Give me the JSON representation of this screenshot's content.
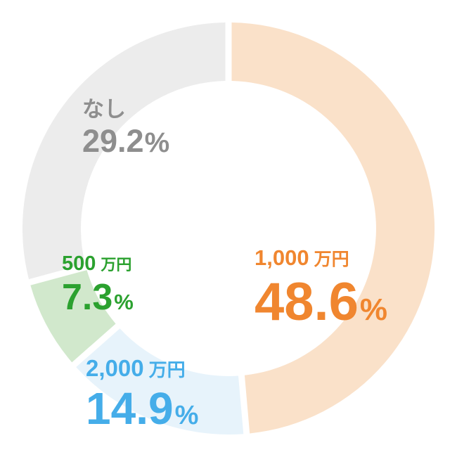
{
  "chart_data": {
    "type": "pie",
    "variant": "donut",
    "title": "",
    "start_angle_deg": 0,
    "direction": "clockwise",
    "legend_position": "none",
    "labels_on_chart": true,
    "categories": [
      "1,000万円",
      "2,000万円",
      "500万円",
      "なし"
    ],
    "values": [
      48.6,
      14.9,
      7.3,
      29.2
    ],
    "slices": [
      {
        "label": "1,000",
        "unit": "万円",
        "value": 48.6,
        "value_text": "48.6",
        "percent_sign": "%",
        "fill": "#FAE1C9",
        "text_color": "#F0862F"
      },
      {
        "label": "2,000",
        "unit": "万円",
        "value": 14.9,
        "value_text": "14.9",
        "percent_sign": "%",
        "fill": "#E7F3FB",
        "text_color": "#45ADE9"
      },
      {
        "label": "500",
        "unit": "万円",
        "value": 7.3,
        "value_text": "7.3",
        "percent_sign": "%",
        "fill": "#D1E8CC",
        "text_color": "#2BA12F"
      },
      {
        "label": "なし",
        "unit": "",
        "value": 29.2,
        "value_text": "29.2",
        "percent_sign": "%",
        "fill": "#ECECEC",
        "text_color": "#8E8E8E"
      }
    ],
    "inner_hole_color": "#FFFFFF",
    "slice_gap_color": "#FFFFFF"
  }
}
